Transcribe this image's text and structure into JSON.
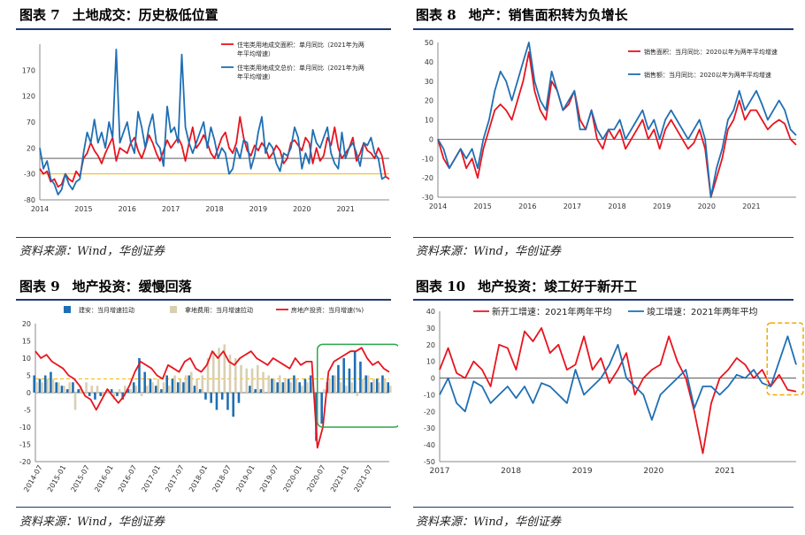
{
  "source_text": "资料来源：Wind，华创证券",
  "panels": [
    {
      "number": "图表 7",
      "title": "土地成交：历史极低位置",
      "chart_data": {
        "type": "line",
        "x_ticks": [
          "2014",
          "2015",
          "2016",
          "2017",
          "2018",
          "2019",
          "2020",
          "2021"
        ],
        "y_ticks": [
          -80,
          -30,
          20,
          70,
          120,
          170
        ],
        "ylim": [
          -80,
          220
        ],
        "reference_line": -30,
        "series": [
          {
            "name": "住宅类用地成交面积：单月同比（2021年为两年平均增速）",
            "color": "#e8141e",
            "values": [
              -20,
              -30,
              -25,
              -45,
              -40,
              -55,
              -50,
              -30,
              -40,
              -45,
              -25,
              -35,
              0,
              10,
              30,
              15,
              5,
              -10,
              10,
              25,
              40,
              -5,
              20,
              15,
              10,
              30,
              40,
              15,
              0,
              20,
              45,
              30,
              10,
              -5,
              15,
              35,
              20,
              30,
              40,
              25,
              -5,
              30,
              60,
              20,
              30,
              45,
              30,
              10,
              0,
              20,
              40,
              50,
              20,
              10,
              30,
              80,
              40,
              15,
              5,
              25,
              15,
              30,
              20,
              0,
              10,
              25,
              15,
              -10,
              0,
              30,
              35,
              25,
              15,
              40,
              30,
              -10,
              20,
              -5,
              5,
              40,
              25,
              60,
              20,
              0,
              10,
              20,
              40,
              -5,
              10,
              30,
              15,
              10,
              0,
              20,
              5,
              -35,
              -40
            ]
          },
          {
            "name": "住宅类用地成交总价：单月同比（2021年为两年平均增速）",
            "color": "#1f6fb4",
            "values": [
              20,
              -20,
              -5,
              -40,
              -50,
              -70,
              -60,
              -30,
              -50,
              -60,
              -45,
              -40,
              10,
              50,
              30,
              75,
              30,
              50,
              20,
              70,
              40,
              210,
              30,
              50,
              70,
              30,
              10,
              90,
              60,
              20,
              60,
              85,
              30,
              20,
              -15,
              100,
              50,
              60,
              30,
              200,
              60,
              30,
              10,
              30,
              50,
              70,
              20,
              60,
              35,
              0,
              20,
              10,
              -30,
              -20,
              20,
              0,
              35,
              30,
              -20,
              5,
              50,
              80,
              10,
              30,
              20,
              -10,
              -25,
              10,
              5,
              20,
              60,
              40,
              -20,
              10,
              -10,
              55,
              30,
              20,
              40,
              60,
              10,
              -10,
              -20,
              50,
              0,
              20,
              30,
              10,
              -15,
              30,
              25,
              40,
              10,
              0,
              -40,
              -35
            ]
          }
        ]
      }
    },
    {
      "number": "图表 8",
      "title": "地产：销售面积转为负增长",
      "chart_data": {
        "type": "line",
        "x_ticks": [
          "2014",
          "2015",
          "2016",
          "2017",
          "2018",
          "2019",
          "2020",
          "2021"
        ],
        "y_ticks": [
          -30,
          -20,
          -10,
          0,
          10,
          20,
          30,
          40,
          50
        ],
        "ylim": [
          -30,
          50
        ],
        "series": [
          {
            "name": "销售面积：当月同比：2020以年为两年平均增速",
            "color": "#e8141e",
            "values": [
              0,
              -10,
              -15,
              -10,
              -5,
              -15,
              -10,
              -20,
              -5,
              5,
              15,
              18,
              15,
              10,
              20,
              30,
              45,
              25,
              15,
              10,
              30,
              25,
              15,
              18,
              25,
              10,
              5,
              15,
              0,
              -5,
              5,
              0,
              5,
              -5,
              0,
              5,
              10,
              0,
              5,
              -5,
              5,
              10,
              5,
              0,
              -5,
              -2,
              5,
              -5,
              -30,
              -20,
              -10,
              5,
              10,
              20,
              10,
              15,
              15,
              10,
              5,
              8,
              10,
              8,
              0,
              -3
            ]
          },
          {
            "name": "销售额：当月同比：2020以年为两年平均增速",
            "color": "#1f6fb4",
            "values": [
              0,
              -5,
              -15,
              -10,
              -5,
              -10,
              -5,
              -15,
              0,
              10,
              25,
              35,
              30,
              20,
              30,
              40,
              50,
              30,
              20,
              15,
              35,
              25,
              15,
              20,
              25,
              5,
              5,
              15,
              5,
              0,
              5,
              5,
              10,
              0,
              5,
              10,
              15,
              5,
              10,
              0,
              10,
              15,
              10,
              5,
              0,
              5,
              10,
              0,
              -30,
              -15,
              -5,
              10,
              15,
              25,
              15,
              20,
              25,
              18,
              10,
              15,
              20,
              15,
              5,
              2
            ]
          }
        ]
      }
    },
    {
      "number": "图表 9",
      "title": "地产投资：缓慢回落",
      "chart_data": {
        "type": "bar",
        "x_ticks": [
          "2014-07",
          "2015-01",
          "2015-07",
          "2016-01",
          "2016-07",
          "2017-01",
          "2017-07",
          "2018-01",
          "2018-07",
          "2019-01",
          "2019-07",
          "2020-01",
          "2020-07",
          "2021-01",
          "2021-07"
        ],
        "y_ticks": [
          -20,
          -15,
          -10,
          -5,
          0,
          5,
          10,
          15,
          20
        ],
        "ylim": [
          -20,
          20
        ],
        "reference_line": 4,
        "series": [
          {
            "name": "建安：当月增速拉动",
            "color": "#1f6fb4",
            "values": [
              5,
              4,
              5,
              6,
              3,
              2,
              1,
              3,
              1,
              0,
              -1,
              -2,
              -1,
              0,
              1,
              -1,
              -2,
              1,
              3,
              10,
              6,
              4,
              2,
              1,
              5,
              4,
              3,
              3,
              5,
              2,
              1,
              -2,
              -3,
              -5,
              -2,
              -5,
              -7,
              -3,
              0,
              2,
              1,
              1,
              0,
              4,
              3,
              3,
              4,
              5,
              3,
              4,
              5,
              -14,
              -9,
              3,
              5,
              8,
              10,
              7,
              12,
              9,
              5,
              3,
              4,
              5,
              3
            ]
          },
          {
            "name": "拿地费用：当月增速拉动",
            "color": "#d8cfb2",
            "values": [
              3,
              3,
              4,
              4,
              3,
              2,
              3,
              -5,
              2,
              3,
              2,
              2,
              -1,
              1,
              -2,
              1,
              2,
              1,
              2,
              -1,
              2,
              3,
              4,
              3,
              2,
              5,
              4,
              5,
              6,
              4,
              5,
              10,
              12,
              13,
              14,
              11,
              10,
              8,
              7,
              7,
              8,
              6,
              5,
              4,
              5,
              4,
              3,
              4,
              2,
              3,
              3,
              0,
              1,
              4,
              5,
              3,
              2,
              3,
              -1,
              4,
              5,
              4,
              3,
              4,
              2
            ]
          },
          {
            "name": "房地产投资：当月增速(%)",
            "color": "#e8141e",
            "type": "line",
            "values": [
              12,
              10,
              11,
              9,
              8,
              7,
              5,
              4,
              2,
              -1,
              -2,
              -5,
              -2,
              1,
              -1,
              -3,
              -1,
              2,
              6,
              9,
              8,
              7,
              5,
              4,
              8,
              7,
              6,
              9,
              10,
              7,
              6,
              8,
              12,
              10,
              12,
              9,
              8,
              10,
              11,
              12,
              10,
              9,
              8,
              10,
              9,
              8,
              7,
              10,
              8,
              9,
              9,
              -16,
              -10,
              6,
              9,
              10,
              11,
              12,
              12,
              13,
              10,
              8,
              9,
              7,
              6
            ]
          }
        ]
      }
    },
    {
      "number": "图表 10",
      "title": "地产投资：竣工好于新开工",
      "chart_data": {
        "type": "line",
        "x_ticks": [
          "2017",
          "2018",
          "2019",
          "2020",
          "2021"
        ],
        "y_ticks": [
          -50,
          -40,
          -30,
          -20,
          -10,
          0,
          10,
          20,
          30,
          40
        ],
        "ylim": [
          -50,
          40
        ],
        "series": [
          {
            "name": "新开工增速：2021年两年平均",
            "color": "#e8141e",
            "values": [
              5,
              18,
              3,
              0,
              10,
              5,
              -5,
              20,
              18,
              5,
              28,
              22,
              30,
              15,
              20,
              5,
              8,
              25,
              5,
              12,
              -3,
              5,
              15,
              -10,
              0,
              5,
              8,
              25,
              10,
              0,
              -20,
              -45,
              -15,
              0,
              5,
              12,
              8,
              0,
              5,
              -5,
              2,
              -7,
              -8
            ]
          },
          {
            "name": "竣工增速：2021年两年平均",
            "color": "#1f6fb4",
            "values": [
              -10,
              0,
              -15,
              -20,
              -2,
              -5,
              -15,
              -10,
              -5,
              -12,
              -5,
              -15,
              -3,
              -5,
              -10,
              -15,
              5,
              -10,
              -5,
              0,
              8,
              20,
              0,
              -5,
              -10,
              -25,
              -10,
              -5,
              0,
              5,
              -18,
              -5,
              -5,
              -10,
              -5,
              2,
              0,
              5,
              -3,
              -5,
              10,
              25,
              8
            ]
          }
        ],
        "highlight_last": 3
      }
    }
  ]
}
